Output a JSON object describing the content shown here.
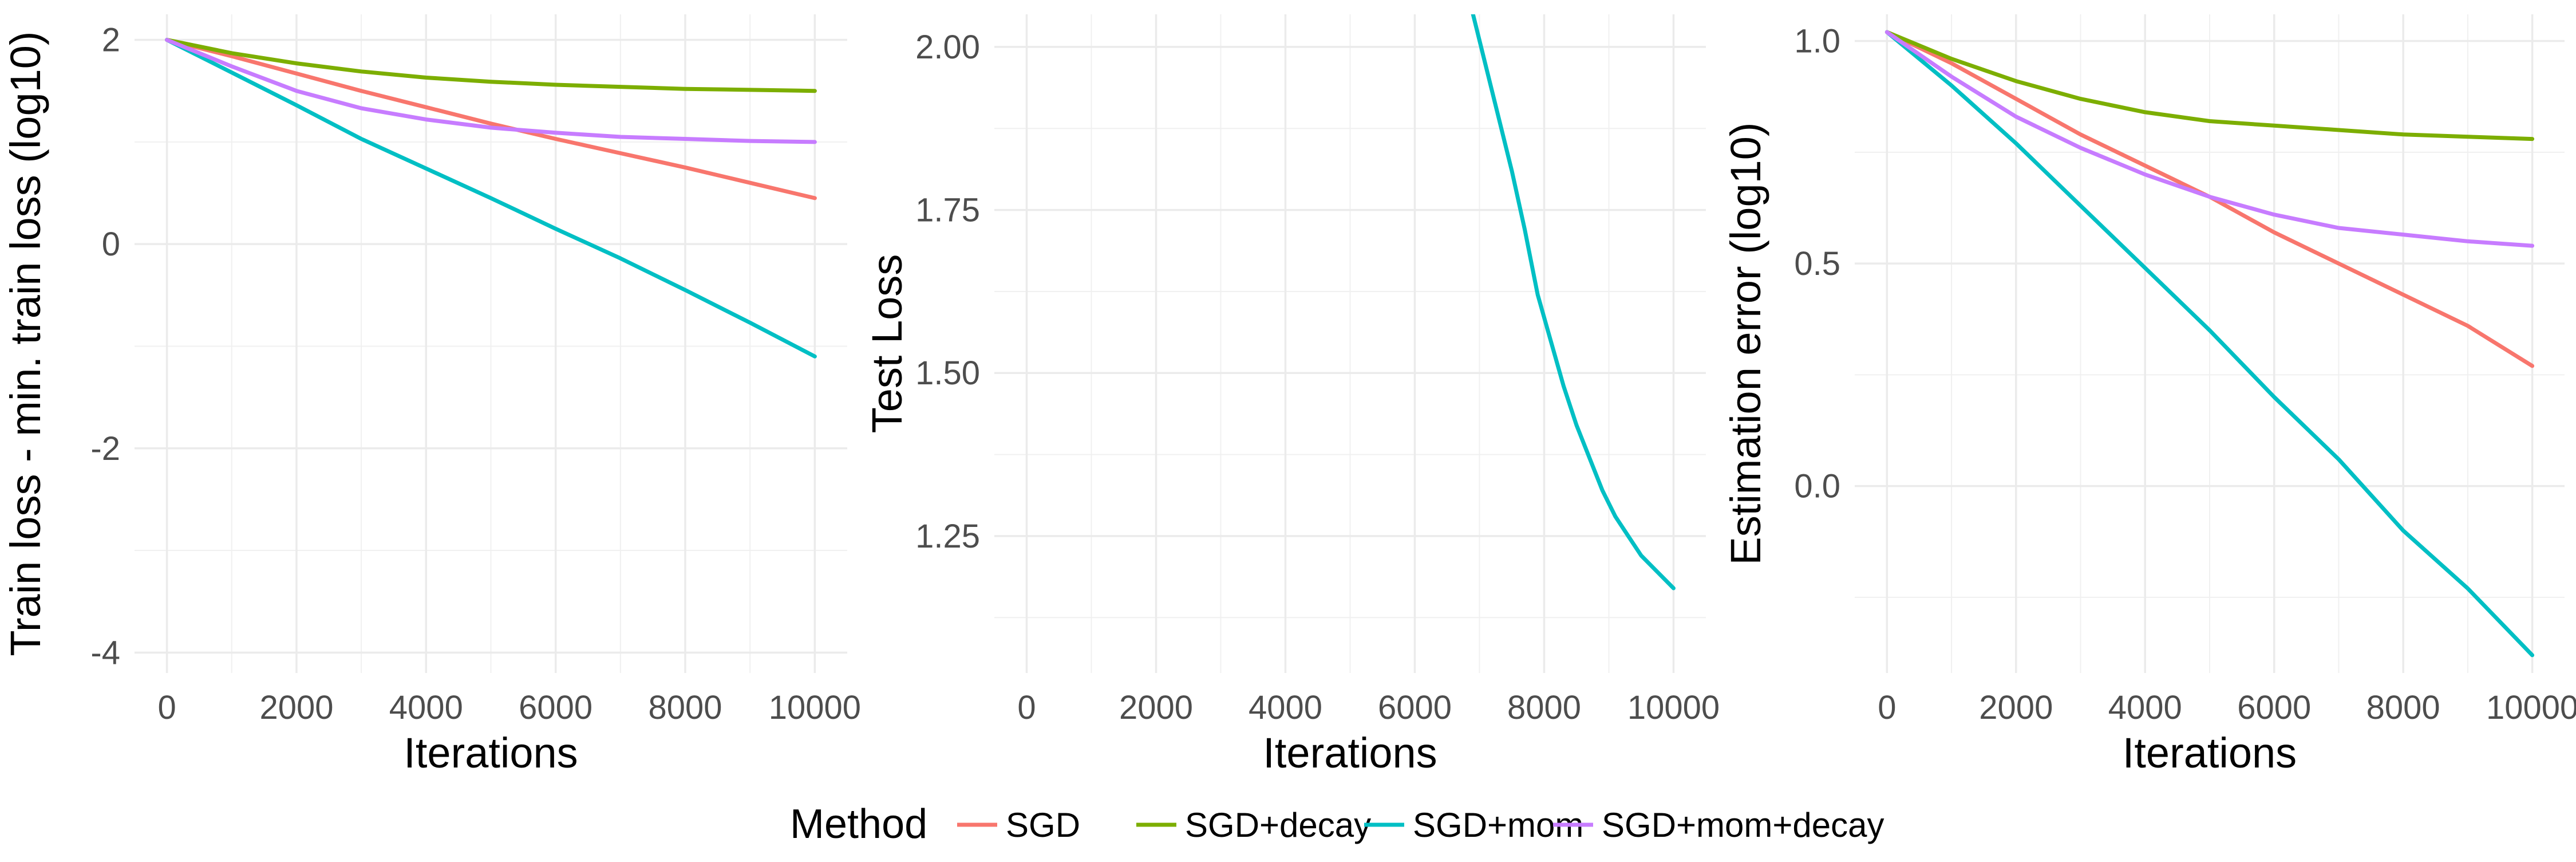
{
  "legend": {
    "title": "Method",
    "items": [
      {
        "label": "SGD",
        "color": "#F8766D"
      },
      {
        "label": "SGD+decay",
        "color": "#7CAE00"
      },
      {
        "label": "SGD+mom",
        "color": "#00BFC4"
      },
      {
        "label": "SGD+mom+decay",
        "color": "#C77CFF"
      }
    ]
  },
  "chart_data": [
    {
      "type": "line",
      "title": "",
      "xlabel": "Iterations",
      "ylabel": "Train loss - min. train loss (log10)",
      "xlim": [
        -500,
        10500
      ],
      "ylim": [
        -4.2,
        2.25
      ],
      "xticks": [
        0,
        2000,
        4000,
        6000,
        8000,
        10000
      ],
      "yticks": [
        -4,
        -2,
        0,
        2
      ],
      "ytick_labels": [
        "-4",
        "-2",
        "0",
        "2"
      ],
      "grid": true,
      "series": [
        {
          "name": "SGD",
          "x": [
            0,
            1000,
            2000,
            3000,
            4000,
            5000,
            6000,
            7000,
            8000,
            9000,
            10000
          ],
          "y": [
            2.0,
            1.84,
            1.67,
            1.5,
            1.34,
            1.18,
            1.03,
            0.89,
            0.75,
            0.6,
            0.45
          ]
        },
        {
          "name": "SGD+decay",
          "x": [
            0,
            1000,
            2000,
            3000,
            4000,
            5000,
            6000,
            7000,
            8000,
            9000,
            10000
          ],
          "y": [
            2.0,
            1.87,
            1.77,
            1.69,
            1.63,
            1.59,
            1.56,
            1.54,
            1.52,
            1.51,
            1.5
          ]
        },
        {
          "name": "SGD+mom",
          "x": [
            0,
            1000,
            2000,
            3000,
            4000,
            5000,
            6000,
            7000,
            8000,
            9000,
            10000
          ],
          "y": [
            2.0,
            1.68,
            1.36,
            1.03,
            0.74,
            0.45,
            0.15,
            -0.14,
            -0.45,
            -0.77,
            -1.1
          ]
        },
        {
          "name": "SGD+mom+decay",
          "x": [
            0,
            1000,
            2000,
            3000,
            4000,
            5000,
            6000,
            7000,
            8000,
            9000,
            10000
          ],
          "y": [
            2.0,
            1.74,
            1.5,
            1.33,
            1.22,
            1.14,
            1.09,
            1.05,
            1.03,
            1.01,
            1.0
          ]
        }
      ]
    },
    {
      "type": "line",
      "title": "",
      "xlabel": "Iterations",
      "ylabel": "Test Loss",
      "xlim": [
        -500,
        10500
      ],
      "ylim": [
        1.04,
        2.05
      ],
      "xticks": [
        0,
        2000,
        4000,
        6000,
        8000,
        10000
      ],
      "yticks": [
        1.25,
        1.5,
        1.75,
        2.0
      ],
      "ytick_labels": [
        "1.25",
        "1.50",
        "1.75",
        "2.00"
      ],
      "grid": true,
      "series": [
        {
          "name": "SGD+mom",
          "x": [
            6900,
            7100,
            7300,
            7500,
            7700,
            7900,
            8100,
            8300,
            8500,
            8700,
            8900,
            9100,
            9300,
            9500,
            9700,
            10000
          ],
          "y": [
            2.05,
            1.97,
            1.89,
            1.81,
            1.72,
            1.62,
            1.55,
            1.48,
            1.42,
            1.37,
            1.32,
            1.28,
            1.25,
            1.22,
            1.2,
            1.17
          ]
        }
      ]
    },
    {
      "type": "line",
      "title": "",
      "xlabel": "Iterations",
      "ylabel": "Estimation error (log10)",
      "xlim": [
        -500,
        10500
      ],
      "ylim": [
        -0.42,
        1.06
      ],
      "xticks": [
        0,
        2000,
        4000,
        6000,
        8000,
        10000
      ],
      "yticks": [
        0.0,
        0.5,
        1.0
      ],
      "ytick_labels": [
        "0.0",
        "0.5",
        "1.0"
      ],
      "grid": true,
      "series": [
        {
          "name": "SGD",
          "x": [
            0,
            1000,
            2000,
            3000,
            4000,
            5000,
            6000,
            7000,
            8000,
            9000,
            10000
          ],
          "y": [
            1.02,
            0.95,
            0.87,
            0.79,
            0.72,
            0.65,
            0.57,
            0.5,
            0.43,
            0.36,
            0.27
          ]
        },
        {
          "name": "SGD+decay",
          "x": [
            0,
            1000,
            2000,
            3000,
            4000,
            5000,
            6000,
            7000,
            8000,
            9000,
            10000
          ],
          "y": [
            1.02,
            0.96,
            0.91,
            0.87,
            0.84,
            0.82,
            0.81,
            0.8,
            0.79,
            0.785,
            0.78
          ]
        },
        {
          "name": "SGD+mom",
          "x": [
            0,
            1000,
            2000,
            3000,
            4000,
            5000,
            6000,
            7000,
            8000,
            9000,
            10000
          ],
          "y": [
            1.02,
            0.9,
            0.77,
            0.63,
            0.49,
            0.35,
            0.2,
            0.06,
            -0.1,
            -0.23,
            -0.38
          ]
        },
        {
          "name": "SGD+mom+decay",
          "x": [
            0,
            1000,
            2000,
            3000,
            4000,
            5000,
            6000,
            7000,
            8000,
            9000,
            10000
          ],
          "y": [
            1.02,
            0.92,
            0.83,
            0.76,
            0.7,
            0.65,
            0.61,
            0.58,
            0.565,
            0.55,
            0.54
          ]
        }
      ]
    }
  ]
}
